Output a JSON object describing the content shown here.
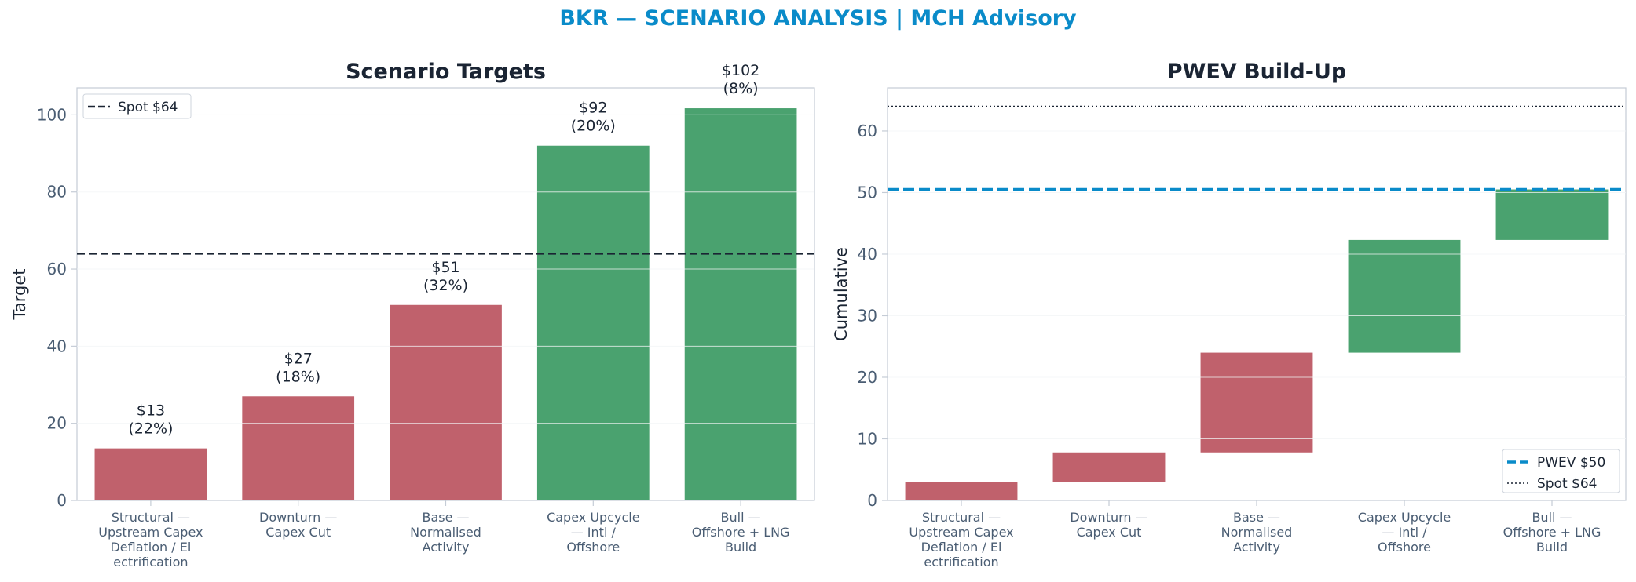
{
  "title": "BKR — SCENARIO ANALYSIS | MCH Advisory",
  "colors": {
    "title": "#0a8bc9",
    "downside": "#c0616c",
    "upside": "#4aa26f",
    "spot_line": "#1a2433",
    "pwev_line": "#0a8bc9",
    "axis": "#c5ccd6",
    "grid": "#eef1f4"
  },
  "chart_data": [
    {
      "type": "bar",
      "title": "Scenario Targets",
      "xlabel": "",
      "ylabel": "Target",
      "ylim": [
        0,
        107
      ],
      "yticks": [
        0,
        20,
        40,
        60,
        80,
        100
      ],
      "categories": [
        [
          "Structural —",
          "Upstream Capex",
          "Deflation / El",
          "ectrification"
        ],
        [
          "Downturn —",
          "Capex Cut"
        ],
        [
          "Base —",
          "Normalised",
          "Activity"
        ],
        [
          "Capex Upcycle",
          "— Intl /",
          "Offshore"
        ],
        [
          "Bull —",
          "Offshore + LNG",
          "Build"
        ]
      ],
      "values": [
        13.5,
        27,
        50.7,
        92,
        101.7
      ],
      "bar_labels": [
        [
          "$13",
          "(22%)"
        ],
        [
          "$27",
          "(18%)"
        ],
        [
          "$51",
          "(32%)"
        ],
        [
          "$92",
          "(20%)"
        ],
        [
          "$102",
          "(8%)"
        ]
      ],
      "bar_colors": [
        "downside",
        "downside",
        "downside",
        "upside",
        "upside"
      ],
      "reference_lines": [
        {
          "label": "Spot $64",
          "value": 64,
          "style": "dashed",
          "color": "spot_line"
        }
      ],
      "legend_position": "top-left",
      "grid": true
    },
    {
      "type": "bar",
      "subtype": "waterfall",
      "title": "PWEV Build-Up",
      "xlabel": "",
      "ylabel": "Cumulative",
      "ylim": [
        0,
        67
      ],
      "yticks": [
        0,
        10,
        20,
        30,
        40,
        50,
        60
      ],
      "categories": [
        [
          "Structural —",
          "Upstream Capex",
          "Deflation / El",
          "ectrification"
        ],
        [
          "Downturn —",
          "Capex Cut"
        ],
        [
          "Base —",
          "Normalised",
          "Activity"
        ],
        [
          "Capex Upcycle",
          "— Intl /",
          "Offshore"
        ],
        [
          "Bull —",
          "Offshore + LNG",
          "Build"
        ]
      ],
      "segments": [
        {
          "start": 0,
          "end": 3.0
        },
        {
          "start": 3.0,
          "end": 7.8
        },
        {
          "start": 7.8,
          "end": 24.0
        },
        {
          "start": 24.0,
          "end": 42.3
        },
        {
          "start": 42.3,
          "end": 50.5
        }
      ],
      "bar_colors": [
        "downside",
        "downside",
        "downside",
        "upside",
        "upside"
      ],
      "reference_lines": [
        {
          "label": "PWEV $50",
          "value": 50.5,
          "style": "dashed",
          "color": "pwev_line"
        },
        {
          "label": "Spot $64",
          "value": 64,
          "style": "dotted",
          "color": "spot_line"
        }
      ],
      "legend_position": "bottom-right",
      "grid": true
    }
  ]
}
